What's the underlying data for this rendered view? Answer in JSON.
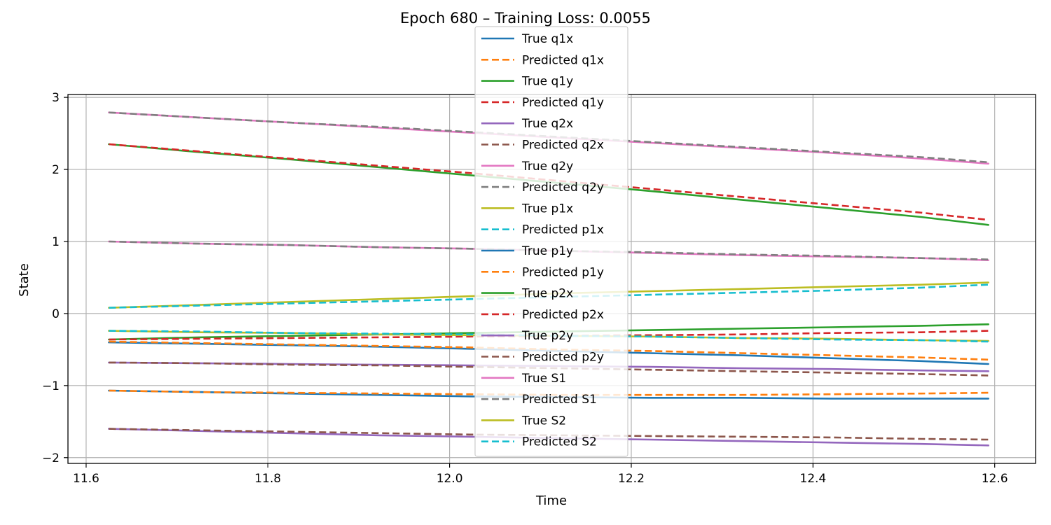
{
  "chart_data": {
    "type": "line",
    "title": "Epoch 680 – Training Loss: 0.0055",
    "xlabel": "Time",
    "ylabel": "State",
    "xlim": [
      11.58,
      12.645
    ],
    "ylim": [
      -2.08,
      3.04
    ],
    "xticks": [
      11.6,
      11.8,
      12.0,
      12.2,
      12.4,
      12.6
    ],
    "xtick_labels": [
      "11.6",
      "11.8",
      "12.0",
      "12.2",
      "12.4",
      "12.6"
    ],
    "yticks": [
      -2,
      -1,
      0,
      1,
      2,
      3
    ],
    "ytick_labels": [
      "−2",
      "−1",
      "0",
      "1",
      "2",
      "3"
    ],
    "grid": true,
    "legend_position": "top-center",
    "x": [
      11.625,
      11.7243,
      11.8237,
      11.923,
      12.0223,
      12.1217,
      12.221,
      12.3203,
      12.4197,
      12.519,
      12.593
    ],
    "series": [
      {
        "name": "True q1x",
        "color": "#1f77b4",
        "style": "solid",
        "values": [
          -0.4,
          -0.42,
          -0.44,
          -0.46,
          -0.49,
          -0.52,
          -0.55,
          -0.58,
          -0.62,
          -0.66,
          -0.7
        ]
      },
      {
        "name": "Predicted q1x",
        "color": "#ff7f0e",
        "style": "dashed",
        "values": [
          -0.39,
          -0.41,
          -0.43,
          -0.45,
          -0.47,
          -0.5,
          -0.52,
          -0.55,
          -0.58,
          -0.61,
          -0.64
        ]
      },
      {
        "name": "True q1y",
        "color": "#2ca02c",
        "style": "solid",
        "values": [
          2.35,
          2.24,
          2.14,
          2.03,
          1.92,
          1.81,
          1.7,
          1.58,
          1.46,
          1.34,
          1.23
        ]
      },
      {
        "name": "Predicted q1y",
        "color": "#d62728",
        "style": "dashed",
        "values": [
          2.35,
          2.25,
          2.15,
          2.05,
          1.95,
          1.84,
          1.73,
          1.62,
          1.51,
          1.4,
          1.3
        ]
      },
      {
        "name": "True q2x",
        "color": "#9467bd",
        "style": "solid",
        "values": [
          -1.6,
          -1.63,
          -1.66,
          -1.69,
          -1.71,
          -1.73,
          -1.75,
          -1.77,
          -1.79,
          -1.81,
          -1.83
        ]
      },
      {
        "name": "Predicted q2x",
        "color": "#8c564b",
        "style": "dashed",
        "values": [
          -1.6,
          -1.62,
          -1.64,
          -1.66,
          -1.68,
          -1.69,
          -1.7,
          -1.71,
          -1.72,
          -1.74,
          -1.75
        ]
      },
      {
        "name": "True q2y",
        "color": "#e377c2",
        "style": "solid",
        "values": [
          2.79,
          2.72,
          2.65,
          2.58,
          2.51,
          2.44,
          2.37,
          2.3,
          2.23,
          2.15,
          2.08
        ]
      },
      {
        "name": "Predicted q2y",
        "color": "#7f7f7f",
        "style": "dashed",
        "values": [
          2.79,
          2.72,
          2.65,
          2.59,
          2.52,
          2.45,
          2.38,
          2.31,
          2.24,
          2.17,
          2.1
        ]
      },
      {
        "name": "True p1x",
        "color": "#bcbd22",
        "style": "solid",
        "values": [
          0.08,
          0.12,
          0.16,
          0.2,
          0.24,
          0.28,
          0.31,
          0.34,
          0.37,
          0.4,
          0.43
        ]
      },
      {
        "name": "Predicted p1x",
        "color": "#17becf",
        "style": "dashed",
        "values": [
          0.08,
          0.11,
          0.14,
          0.17,
          0.2,
          0.23,
          0.26,
          0.29,
          0.32,
          0.36,
          0.4
        ]
      },
      {
        "name": "True p1y",
        "color": "#1f77b4",
        "style": "solid",
        "values": [
          -1.07,
          -1.09,
          -1.11,
          -1.13,
          -1.15,
          -1.16,
          -1.17,
          -1.17,
          -1.18,
          -1.18,
          -1.18
        ]
      },
      {
        "name": "Predicted p1y",
        "color": "#ff7f0e",
        "style": "dashed",
        "values": [
          -1.07,
          -1.09,
          -1.1,
          -1.11,
          -1.12,
          -1.13,
          -1.13,
          -1.13,
          -1.12,
          -1.11,
          -1.1
        ]
      },
      {
        "name": "True p2x",
        "color": "#2ca02c",
        "style": "solid",
        "values": [
          -0.36,
          -0.33,
          -0.31,
          -0.29,
          -0.27,
          -0.25,
          -0.23,
          -0.21,
          -0.19,
          -0.17,
          -0.15
        ]
      },
      {
        "name": "Predicted p2x",
        "color": "#d62728",
        "style": "dashed",
        "values": [
          -0.36,
          -0.35,
          -0.34,
          -0.33,
          -0.32,
          -0.31,
          -0.3,
          -0.29,
          -0.27,
          -0.26,
          -0.24
        ]
      },
      {
        "name": "True p2y",
        "color": "#9467bd",
        "style": "solid",
        "values": [
          -0.68,
          -0.69,
          -0.7,
          -0.71,
          -0.72,
          -0.73,
          -0.74,
          -0.76,
          -0.77,
          -0.79,
          -0.8
        ]
      },
      {
        "name": "Predicted p2y",
        "color": "#8c564b",
        "style": "dashed",
        "values": [
          -0.68,
          -0.69,
          -0.71,
          -0.72,
          -0.74,
          -0.76,
          -0.78,
          -0.8,
          -0.82,
          -0.84,
          -0.86
        ]
      },
      {
        "name": "True S1",
        "color": "#e377c2",
        "style": "solid",
        "values": [
          1.0,
          0.97,
          0.95,
          0.92,
          0.9,
          0.87,
          0.84,
          0.81,
          0.79,
          0.77,
          0.74
        ]
      },
      {
        "name": "Predicted S1",
        "color": "#7f7f7f",
        "style": "dashed",
        "values": [
          1.0,
          0.97,
          0.95,
          0.92,
          0.9,
          0.87,
          0.85,
          0.82,
          0.8,
          0.77,
          0.75
        ]
      },
      {
        "name": "True S2",
        "color": "#bcbd22",
        "style": "solid",
        "values": [
          -0.24,
          -0.26,
          -0.27,
          -0.29,
          -0.3,
          -0.31,
          -0.32,
          -0.34,
          -0.35,
          -0.37,
          -0.38
        ]
      },
      {
        "name": "Predicted S2",
        "color": "#17becf",
        "style": "dashed",
        "values": [
          -0.24,
          -0.25,
          -0.27,
          -0.28,
          -0.29,
          -0.31,
          -0.32,
          -0.34,
          -0.36,
          -0.37,
          -0.39
        ]
      }
    ]
  }
}
